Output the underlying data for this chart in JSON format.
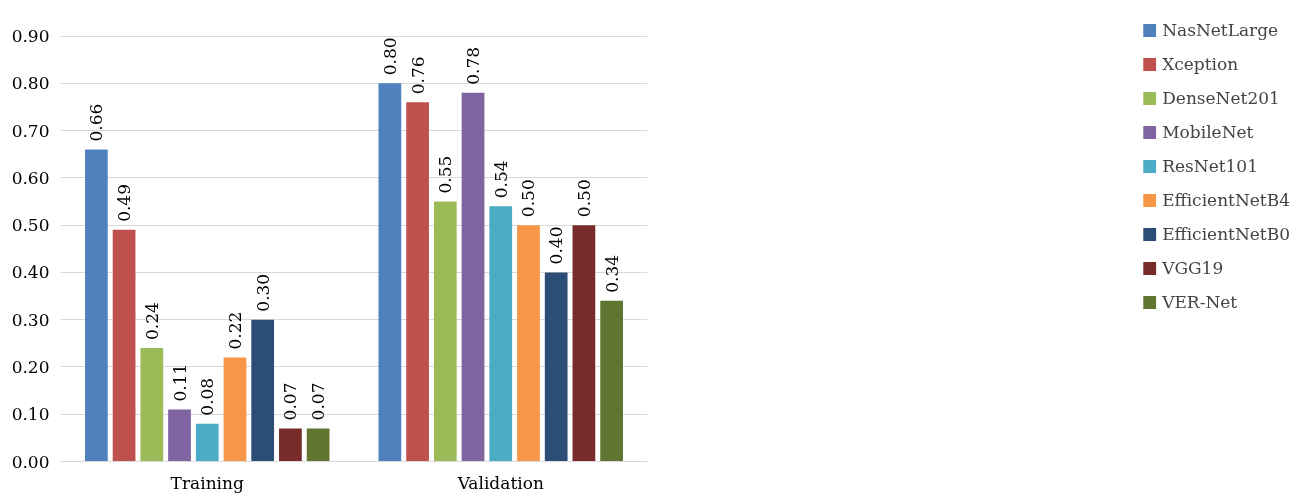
{
  "chart_data": {
    "type": "bar",
    "categories": [
      "Training",
      "Validation"
    ],
    "series": [
      {
        "name": "NasNetLarge",
        "color": "#4f81bd",
        "values": [
          0.66,
          0.8
        ],
        "value_labels": [
          "0.66",
          "0.80"
        ]
      },
      {
        "name": "Xception",
        "color": "#c0504d",
        "values": [
          0.49,
          0.76
        ],
        "value_labels": [
          "0.49",
          "0.76"
        ]
      },
      {
        "name": "DenseNet201",
        "color": "#9bbb59",
        "values": [
          0.24,
          0.55
        ],
        "value_labels": [
          "0.24",
          "0.55"
        ]
      },
      {
        "name": "MobileNet",
        "color": "#8064a2",
        "values": [
          0.11,
          0.78
        ],
        "value_labels": [
          "0.11",
          "0.78"
        ]
      },
      {
        "name": "ResNet101",
        "color": "#4bacc6",
        "values": [
          0.08,
          0.54
        ],
        "value_labels": [
          "0.08",
          "0.54"
        ]
      },
      {
        "name": "EfficientNetB4",
        "color": "#f79646",
        "values": [
          0.22,
          0.5
        ],
        "value_labels": [
          "0.22",
          "0.50"
        ]
      },
      {
        "name": "EfficientNetB0",
        "color": "#2c4d75",
        "values": [
          0.3,
          0.4
        ],
        "value_labels": [
          "0.30",
          "0.40"
        ]
      },
      {
        "name": "VGG19",
        "color": "#772c2a",
        "values": [
          0.07,
          0.5
        ],
        "value_labels": [
          "0.07",
          "0.50"
        ]
      },
      {
        "name": "VER-Net",
        "color": "#5f7530",
        "values": [
          0.07,
          0.34
        ],
        "value_labels": [
          "0.07",
          "0.34"
        ]
      }
    ],
    "ylim": [
      0,
      0.9
    ],
    "yticks": [
      {
        "value": 0,
        "label": "0.00"
      },
      {
        "value": 0.1,
        "label": "0.10"
      },
      {
        "value": 0.2,
        "label": "0.20"
      },
      {
        "value": 0.3,
        "label": "0.30"
      },
      {
        "value": 0.4,
        "label": "0.40"
      },
      {
        "value": 0.5,
        "label": "0.50"
      },
      {
        "value": 0.6,
        "label": "0.60"
      },
      {
        "value": 0.7,
        "label": "0.70"
      },
      {
        "value": 0.8,
        "label": "0.80"
      },
      {
        "value": 0.9,
        "label": "0.90"
      }
    ],
    "grid": "y",
    "legend": "right"
  }
}
